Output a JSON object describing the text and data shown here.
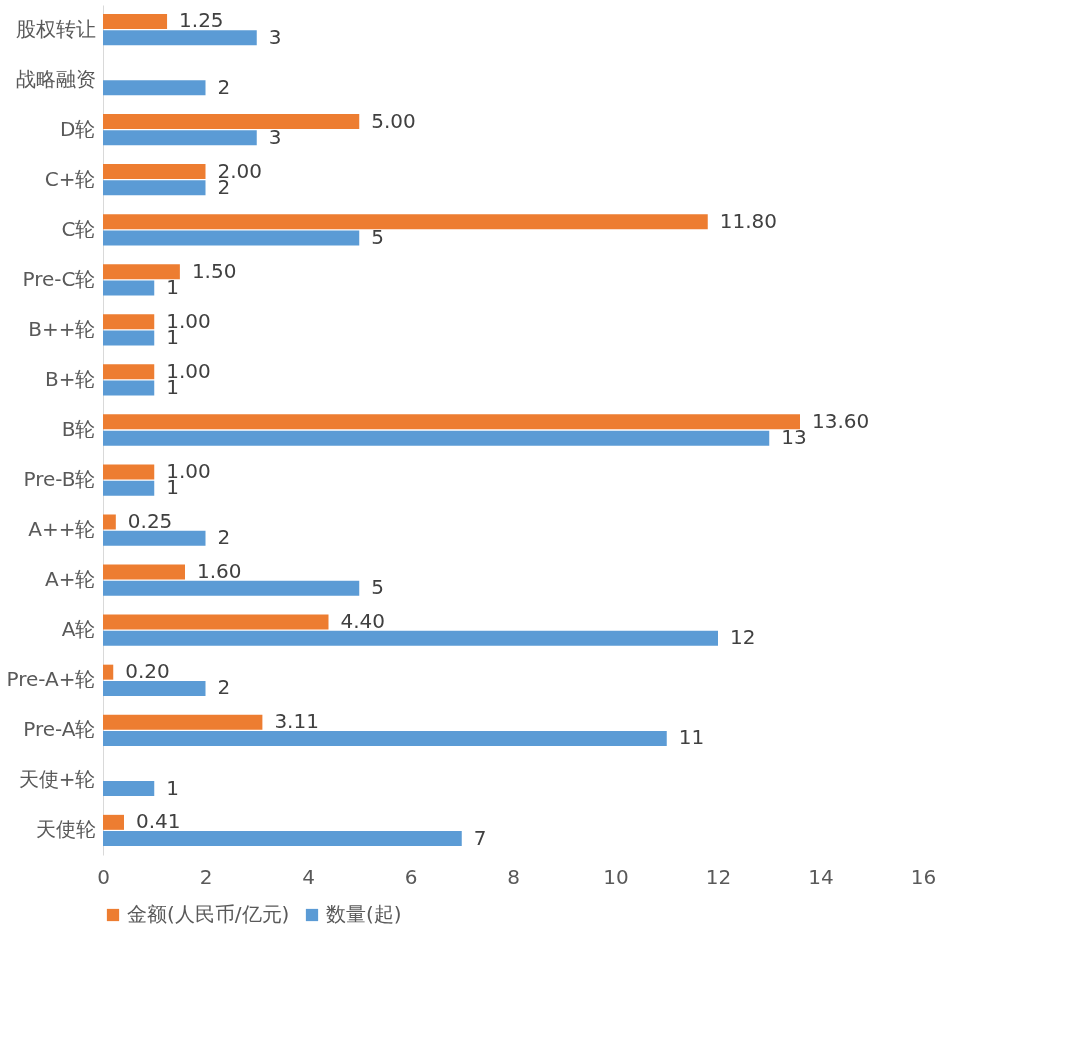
{
  "chart_data": {
    "type": "bar",
    "orientation": "horizontal",
    "categories": [
      "股权转让",
      "战略融资",
      "D轮",
      "C+轮",
      "C轮",
      "Pre-C轮",
      "B++轮",
      "B+轮",
      "B轮",
      "Pre-B轮",
      "A++轮",
      "A+轮",
      "A轮",
      "Pre-A+轮",
      "Pre-A轮",
      "天使+轮",
      "天使轮"
    ],
    "series": [
      {
        "name": "金额(人民币/亿元)",
        "color": "#ed7d31",
        "values": [
          1.25,
          null,
          5.0,
          2.0,
          11.8,
          1.5,
          1.0,
          1.0,
          13.6,
          1.0,
          0.25,
          1.6,
          4.4,
          0.2,
          3.11,
          null,
          0.41
        ],
        "value_labels": [
          "1.25",
          null,
          "5.00",
          "2.00",
          "11.80",
          "1.50",
          "1.00",
          "1.00",
          "13.60",
          "1.00",
          "0.25",
          "1.60",
          "4.40",
          "0.20",
          "3.11",
          null,
          "0.41"
        ]
      },
      {
        "name": "数量(起)",
        "color": "#5b9bd5",
        "values": [
          3,
          2,
          3,
          2,
          5,
          1,
          1,
          1,
          13,
          1,
          2,
          5,
          12,
          2,
          11,
          1,
          7
        ],
        "value_labels": [
          "3",
          "2",
          "3",
          "2",
          "5",
          "1",
          "1",
          "1",
          "13",
          "1",
          "2",
          "5",
          "12",
          "2",
          "11",
          "1",
          "7"
        ]
      }
    ],
    "xlim": [
      0,
      16
    ],
    "xticks": [
      0,
      2,
      4,
      6,
      8,
      10,
      12,
      14,
      16
    ],
    "grid": false,
    "legend": "bottom"
  }
}
